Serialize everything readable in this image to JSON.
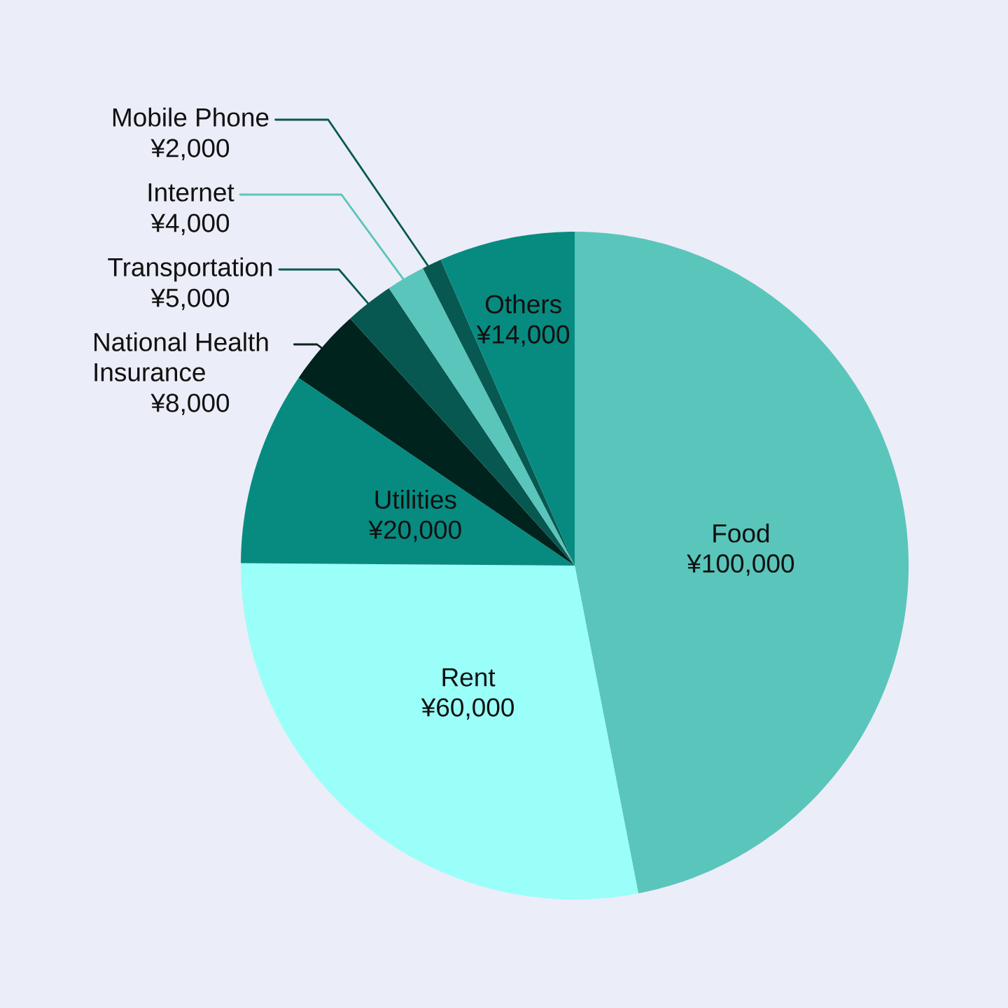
{
  "chart_data": {
    "type": "pie",
    "categories": [
      "Food",
      "Rent",
      "Utilities",
      "National Health Insurance",
      "Transportation",
      "Internet",
      "Mobile Phone",
      "Others"
    ],
    "values": [
      100000,
      60000,
      20000,
      8000,
      5000,
      4000,
      2000,
      14000
    ],
    "colors": [
      "#5ac5bb",
      "#9afff9",
      "#078b80",
      "#00231d",
      "#075850",
      "#5ac5bb",
      "#075850",
      "#078b80"
    ],
    "value_labels": [
      "¥100,000",
      "¥60,000",
      "¥20,000",
      "¥8,000",
      "¥5,000",
      "¥4,000",
      "¥2,000",
      "¥14,000"
    ]
  }
}
